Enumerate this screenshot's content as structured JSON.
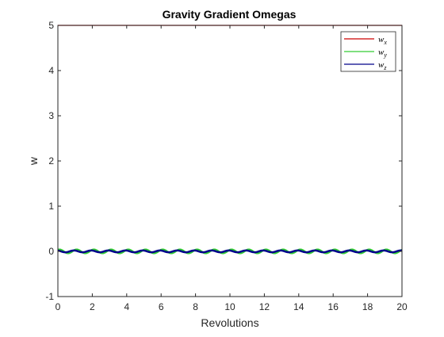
{
  "chart_data": {
    "type": "line",
    "title": "Gravity Gradient Omegas",
    "xlabel": "Revolutions",
    "ylabel": "w",
    "xlim": [
      0,
      20
    ],
    "ylim": [
      -1,
      5
    ],
    "xticks": [
      0,
      2,
      4,
      6,
      8,
      10,
      12,
      14,
      16,
      18,
      20
    ],
    "yticks": [
      -1,
      0,
      1,
      2,
      3,
      4,
      5
    ],
    "grid": false,
    "legend_position": "top-right",
    "series": [
      {
        "name": "w_x",
        "legend_main": "w",
        "legend_sub": "x",
        "color": "#cc0000",
        "constant": 5,
        "amplitude": 0,
        "oscillations_per_revolution": 0
      },
      {
        "name": "w_y",
        "legend_main": "w",
        "legend_sub": "y",
        "color": "#33cc33",
        "constant": 0,
        "amplitude": 0.04,
        "oscillations_per_revolution": 1
      },
      {
        "name": "w_z",
        "legend_main": "w",
        "legend_sub": "z",
        "color": "#00008b",
        "constant": 0,
        "amplitude": 0.02,
        "oscillations_per_revolution": 1
      }
    ]
  }
}
